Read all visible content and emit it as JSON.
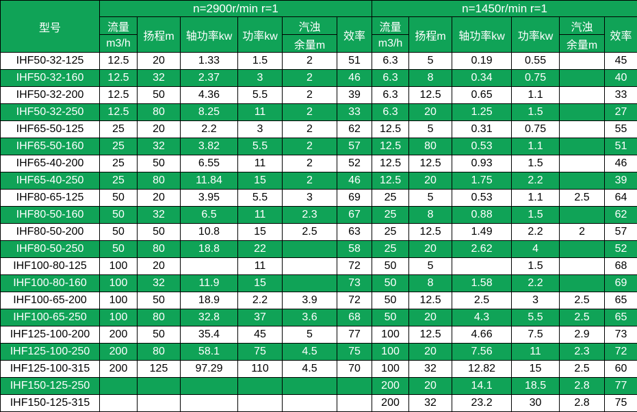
{
  "colors": {
    "green": "#10a357",
    "text_on_green": "#ffffff",
    "text": "#000000",
    "border": "#000000"
  },
  "header": {
    "model": "型号",
    "section_2900": "n=2900r/min   r=1",
    "section_1450": "n=1450r/min    r=1",
    "flow": "流量",
    "flow_unit": "m3/h",
    "head": "扬程m",
    "shaft_power": "轴功率kw",
    "power": "功率kw",
    "npsh": "汽浊",
    "npsh_unit": "余量m",
    "efficiency": "效率"
  },
  "rows": [
    {
      "model": "IHF50-32-125",
      "n2900": [
        "12.5",
        "20",
        "1.33",
        "1.5",
        "2",
        "51"
      ],
      "n1450": [
        "6.3",
        "5",
        "0.19",
        "0.55",
        "",
        "45"
      ]
    },
    {
      "model": "IHF50-32-160",
      "n2900": [
        "12.5",
        "32",
        "2.37",
        "3",
        "2",
        "46"
      ],
      "n1450": [
        "6.3",
        "8",
        "0.34",
        "0.75",
        "",
        "40"
      ]
    },
    {
      "model": "IHF50-32-200",
      "n2900": [
        "12.5",
        "50",
        "4.36",
        "5.5",
        "2",
        "39"
      ],
      "n1450": [
        "6.3",
        "12.5",
        "0.65",
        "1.1",
        "",
        "33"
      ]
    },
    {
      "model": "IHF50-32-250",
      "n2900": [
        "12.5",
        "80",
        "8.25",
        "11",
        "2",
        "33"
      ],
      "n1450": [
        "6.3",
        "20",
        "1.25",
        "1.5",
        "",
        "27"
      ]
    },
    {
      "model": "IHF65-50-125",
      "n2900": [
        "25",
        "20",
        "2.2",
        "3",
        "2",
        "62"
      ],
      "n1450": [
        "12.5",
        "5",
        "0.31",
        "0.75",
        "",
        "55"
      ]
    },
    {
      "model": "IHF65-50-160",
      "n2900": [
        "25",
        "32",
        "3.82",
        "5.5",
        "2",
        "57"
      ],
      "n1450": [
        "12.5",
        "80",
        "0.53",
        "1.1",
        "",
        "51"
      ]
    },
    {
      "model": "IHF65-40-200",
      "n2900": [
        "25",
        "50",
        "6.55",
        "11",
        "2",
        "52"
      ],
      "n1450": [
        "12.5",
        "12.5",
        "0.93",
        "1.5",
        "",
        "46"
      ]
    },
    {
      "model": "IHF65-40-250",
      "n2900": [
        "25",
        "80",
        "11.84",
        "15",
        "2",
        "46"
      ],
      "n1450": [
        "12.5",
        "20",
        "1.75",
        "2.2",
        "",
        "39"
      ]
    },
    {
      "model": "IHF80-65-125",
      "n2900": [
        "50",
        "20",
        "3.95",
        "5.5",
        "3",
        "69"
      ],
      "n1450": [
        "25",
        "5",
        "0.53",
        "1.1",
        "2.5",
        "64"
      ]
    },
    {
      "model": "IHF80-50-160",
      "n2900": [
        "50",
        "32",
        "6.5",
        "11",
        "2.3",
        "67"
      ],
      "n1450": [
        "25",
        "8",
        "0.88",
        "1.5",
        "",
        "62"
      ]
    },
    {
      "model": "IHF80-50-200",
      "n2900": [
        "50",
        "50",
        "10.8",
        "15",
        "2.5",
        "63"
      ],
      "n1450": [
        "25",
        "12.5",
        "1.49",
        "2.2",
        "2",
        "57"
      ]
    },
    {
      "model": "IHF80-50-250",
      "n2900": [
        "50",
        "80",
        "18.8",
        "22",
        "",
        "58"
      ],
      "n1450": [
        "25",
        "20",
        "2.62",
        "4",
        "",
        "52"
      ]
    },
    {
      "model": "IHF100-80-125",
      "n2900": [
        "100",
        "20",
        "",
        "11",
        "",
        "72"
      ],
      "n1450": [
        "50",
        "5",
        "",
        "1.5",
        "",
        "68"
      ]
    },
    {
      "model": "IHF100-80-160",
      "n2900": [
        "100",
        "32",
        "11.9",
        "15",
        "",
        "73"
      ],
      "n1450": [
        "50",
        "8",
        "1.58",
        "2.2",
        "",
        "69"
      ]
    },
    {
      "model": "IHF100-65-200",
      "n2900": [
        "100",
        "50",
        "18.9",
        "2.2",
        "3.9",
        "72"
      ],
      "n1450": [
        "50",
        "12.5",
        "2.5",
        "3",
        "2.5",
        "65"
      ]
    },
    {
      "model": "IHF100-65-250",
      "n2900": [
        "100",
        "80",
        "32.8",
        "37",
        "3.6",
        "68"
      ],
      "n1450": [
        "50",
        "20",
        "4.3",
        "5.5",
        "2.5",
        "65"
      ]
    },
    {
      "model": "IHF125-100-200",
      "n2900": [
        "200",
        "50",
        "35.4",
        "45",
        "5",
        "77"
      ],
      "n1450": [
        "100",
        "12.5",
        "4.66",
        "7.5",
        "2.9",
        "73"
      ]
    },
    {
      "model": "IHF125-100-250",
      "n2900": [
        "200",
        "80",
        "58.1",
        "75",
        "4.5",
        "75"
      ],
      "n1450": [
        "100",
        "20",
        "7.56",
        "11",
        "2.3",
        "72"
      ]
    },
    {
      "model": "IHF125-100-315",
      "n2900": [
        "200",
        "125",
        "97.29",
        "110",
        "4.5",
        "70"
      ],
      "n1450": [
        "100",
        "32",
        "12.82",
        "15",
        "2.5",
        "60"
      ]
    },
    {
      "model": "IHF150-125-250",
      "n2900": [
        "",
        "",
        "",
        "",
        "",
        ""
      ],
      "n1450": [
        "200",
        "20",
        "14.1",
        "18.5",
        "2.8",
        "77"
      ]
    },
    {
      "model": "IHF150-125-315",
      "n2900": [
        "",
        "",
        "",
        "",
        "",
        ""
      ],
      "n1450": [
        "200",
        "32",
        "23.2",
        "30",
        "2.8",
        "75"
      ]
    }
  ]
}
